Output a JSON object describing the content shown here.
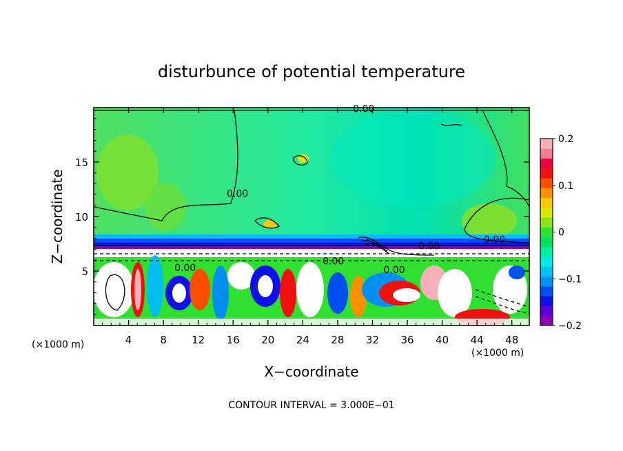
{
  "chart_data": {
    "type": "heatmap",
    "title": "disturbunce of potential temperature",
    "xlabel": "X−coordinate",
    "ylabel": "Z−coordinate",
    "x_unit_label_left": "(×1000 m)",
    "x_unit_label_right": "(×1000 m)",
    "footnote": "CONTOUR INTERVAL = 3.000E−01",
    "xlim": [
      0,
      50
    ],
    "ylim": [
      0,
      20
    ],
    "xticks": [
      4,
      8,
      12,
      16,
      20,
      24,
      28,
      32,
      36,
      40,
      44,
      48
    ],
    "yticks": [
      5,
      10,
      15
    ],
    "colorbar": {
      "range": [
        -0.2,
        0.2
      ],
      "ticks": [
        {
          "value": 0.2,
          "label": "0.2"
        },
        {
          "value": 0.1,
          "label": "0.1"
        },
        {
          "value": 0.0,
          "label": "0"
        },
        {
          "value": -0.1,
          "label": "−0.1"
        },
        {
          "value": -0.2,
          "label": "−0.2"
        }
      ],
      "colors": [
        "#8a00b8",
        "#5a00d8",
        "#1010e8",
        "#0050f0",
        "#0090f0",
        "#00c0f0",
        "#00e8e0",
        "#00f0a0",
        "#00e060",
        "#30e030",
        "#90e020",
        "#d8e800",
        "#f8c800",
        "#f89000",
        "#f85000",
        "#f01010",
        "#e80040",
        "#f08090",
        "#f8b0b8"
      ]
    },
    "contour_labels": [
      {
        "x": 31.0,
        "z": 19.6,
        "text": "0.00"
      },
      {
        "x": 16.5,
        "z": 11.8,
        "text": "0.00"
      },
      {
        "x": 46.0,
        "z": 7.6,
        "text": "0.00"
      },
      {
        "x": 38.5,
        "z": 7.0,
        "text": "0.00"
      },
      {
        "x": 10.5,
        "z": 5.0,
        "text": "0.00"
      },
      {
        "x": 27.5,
        "z": 5.6,
        "text": "0.00"
      },
      {
        "x": 34.5,
        "z": 4.8,
        "text": "0.00"
      }
    ]
  }
}
